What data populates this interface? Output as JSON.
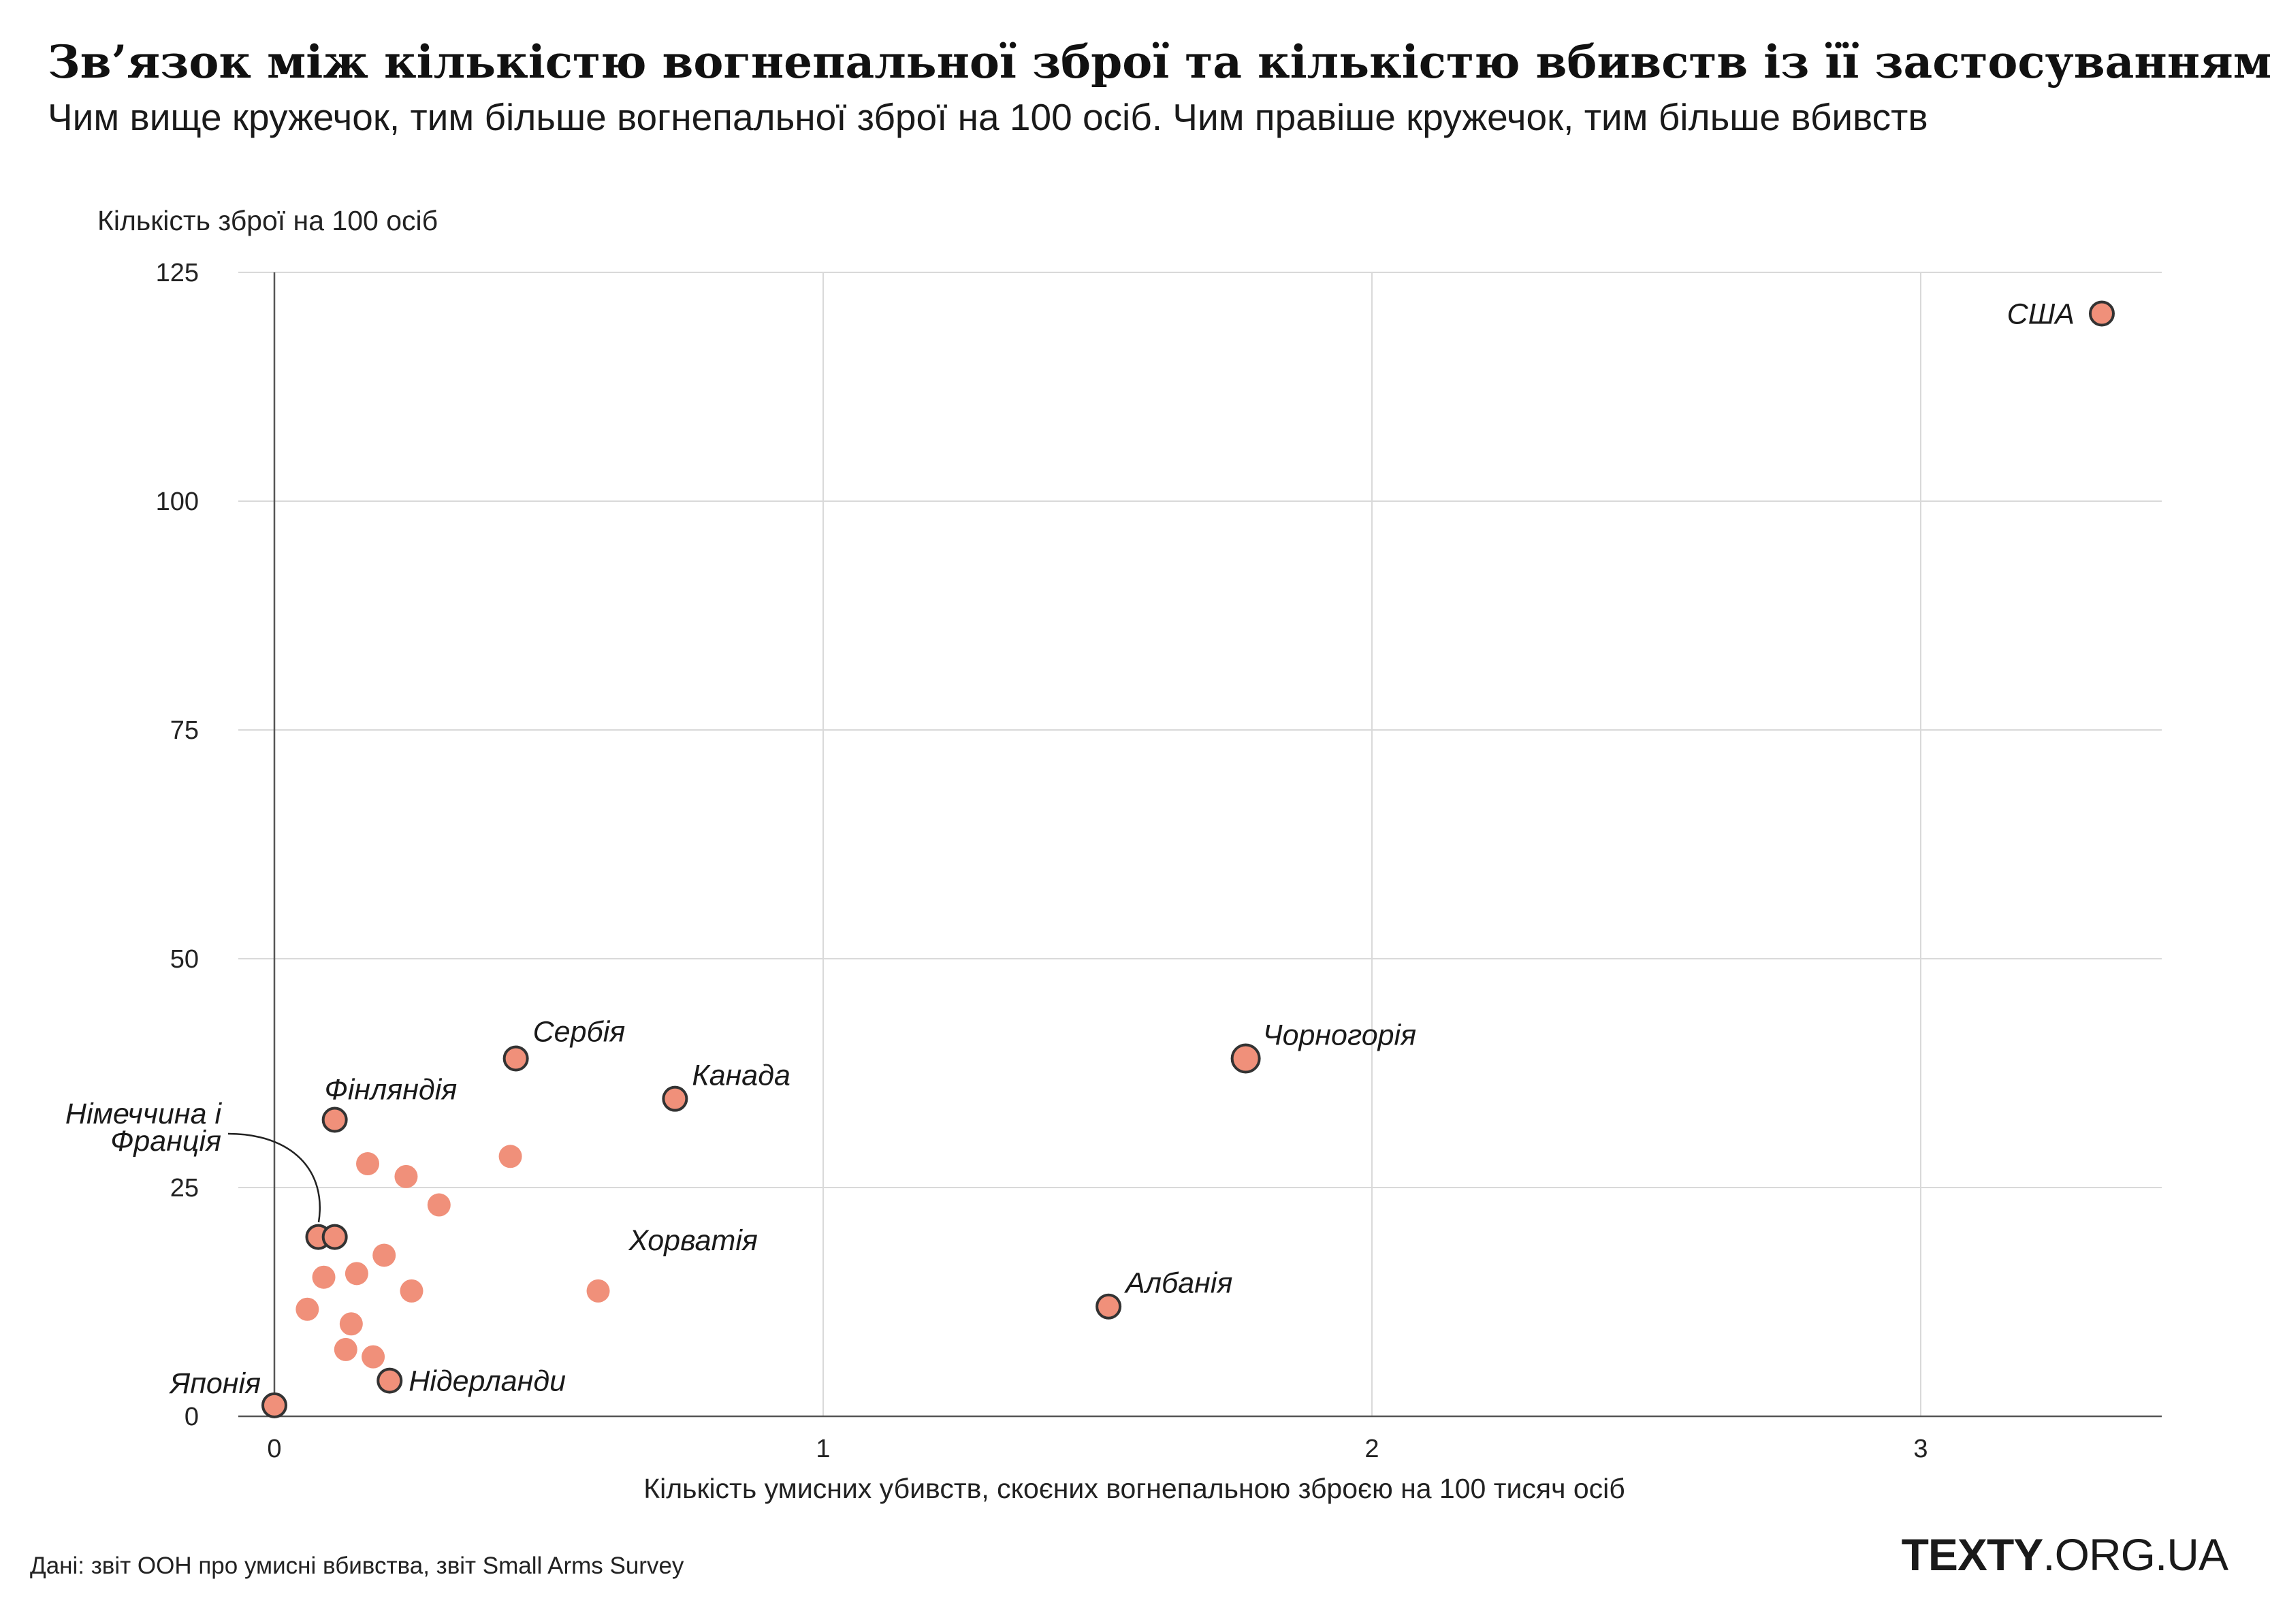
{
  "title": "Зв’язок між кількістю вогнепальної зброї та кількістю вбивств із її застосуванням",
  "subtitle": "Чим вище кружечок, тим більше вогнепальної зброї на 100 осіб. Чим правіше кружечок, тим більше вбивств",
  "source": "Дані: звіт ООН про умисні вбивства, звіт Small Arms Survey",
  "brand": {
    "bold": "TEXTY",
    "rest": ".ORG.UA"
  },
  "colors": {
    "point": "#f0907a",
    "point_stroke": "#333333",
    "grid": "#d9d9d9",
    "axis": "#555555"
  },
  "chart_data": {
    "type": "scatter",
    "xlabel": "Кількість умисних убивств, скоєних вогнепальною зброєю на 100 тисяч осіб",
    "ylabel": "Кількість зброї на 100 осіб",
    "xlim": [
      0,
      3.5
    ],
    "ylim": [
      0,
      125
    ],
    "xticks": [
      "0",
      "1",
      "2",
      "3"
    ],
    "yticks": [
      "0",
      "25",
      "50",
      "75",
      "100",
      "125"
    ],
    "grid": true,
    "points": [
      {
        "x": 3.33,
        "y": 120.5,
        "label": "США",
        "highlight": true
      },
      {
        "x": 1.77,
        "y": 39.1,
        "label": "Чорногорія",
        "highlight": true
      },
      {
        "x": 0.44,
        "y": 39.1,
        "label": "Сербія",
        "highlight": true
      },
      {
        "x": 0.73,
        "y": 34.7,
        "label": "Канада",
        "highlight": true
      },
      {
        "x": 0.11,
        "y": 32.4,
        "label": "Фінляндія",
        "highlight": true
      },
      {
        "x": 0.08,
        "y": 19.6,
        "label": "Німеччина і Франція",
        "highlight": true
      },
      {
        "x": 0.11,
        "y": 19.6,
        "label": "",
        "highlight": true
      },
      {
        "x": 1.52,
        "y": 12.0,
        "label": "Албанія",
        "highlight": true
      },
      {
        "x": 0.59,
        "y": 13.7,
        "label": "Хорватія",
        "highlight": false
      },
      {
        "x": 0.21,
        "y": 3.9,
        "label": "Нідерланди",
        "highlight": true
      },
      {
        "x": 0.0,
        "y": 1.2,
        "label": "Японія",
        "highlight": true
      },
      {
        "x": 0.17,
        "y": 27.6,
        "label": "",
        "highlight": false
      },
      {
        "x": 0.24,
        "y": 26.2,
        "label": "",
        "highlight": false
      },
      {
        "x": 0.43,
        "y": 28.4,
        "label": "",
        "highlight": false
      },
      {
        "x": 0.3,
        "y": 23.1,
        "label": "",
        "highlight": false
      },
      {
        "x": 0.2,
        "y": 17.6,
        "label": "",
        "highlight": false
      },
      {
        "x": 0.09,
        "y": 15.2,
        "label": "",
        "highlight": false
      },
      {
        "x": 0.15,
        "y": 15.6,
        "label": "",
        "highlight": false
      },
      {
        "x": 0.25,
        "y": 13.7,
        "label": "",
        "highlight": false
      },
      {
        "x": 0.06,
        "y": 11.7,
        "label": "",
        "highlight": false
      },
      {
        "x": 0.14,
        "y": 10.1,
        "label": "",
        "highlight": false
      },
      {
        "x": 0.13,
        "y": 7.3,
        "label": "",
        "highlight": false
      },
      {
        "x": 0.18,
        "y": 6.5,
        "label": "",
        "highlight": false
      }
    ]
  }
}
